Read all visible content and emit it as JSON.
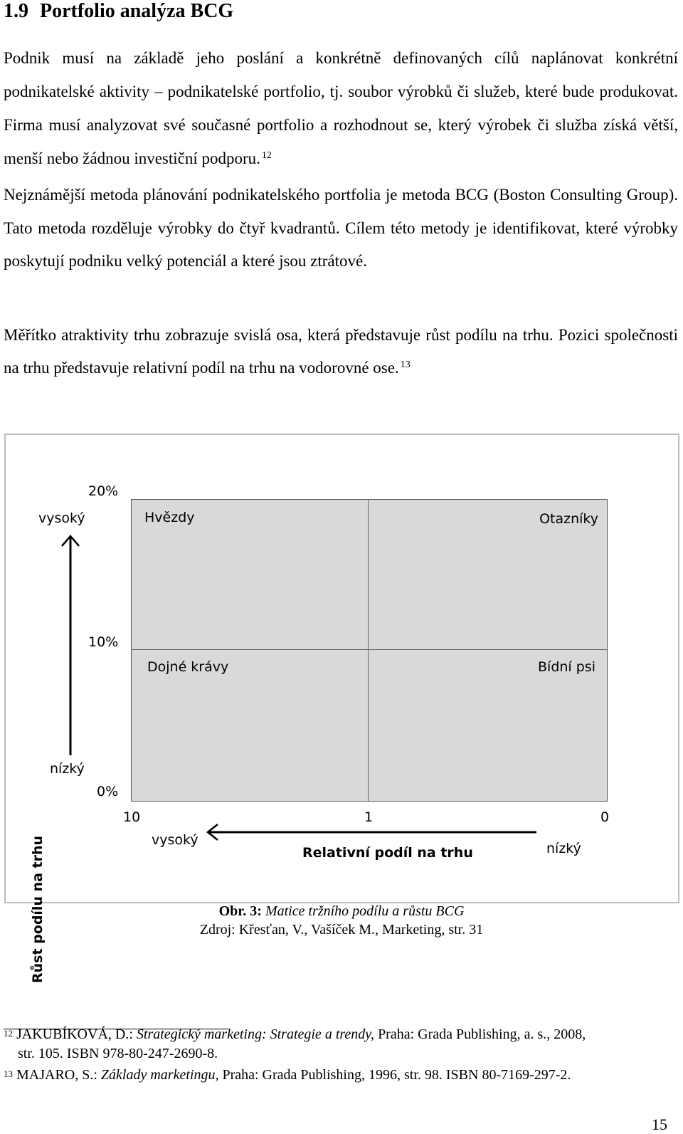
{
  "heading": {
    "number": "1.9",
    "title": "Portfolio analýza BCG"
  },
  "paragraphs": {
    "p1": "Podnik musí na základě jeho poslání a konkrétně definovaných cílů naplánovat konkrétní podnikatelské aktivity – podnikatelské portfolio, tj. soubor výrobků či služeb, které bude produkovat. Firma musí analyzovat své současné portfolio a rozhodnout se, který výrobek či služba získá větší, menší nebo žádnou investiční podporu.",
    "p1_ref": "12",
    "p2": "Nejznámější metoda plánování podnikatelského portfolia je metoda BCG (Boston Consulting Group). Tato metoda rozděluje výrobky do čtyř kvadrantů. Cílem této metody je identifikovat, které výrobky poskytují podniku velký potenciál a které jsou ztrátové.",
    "p3": "Měřítko atraktivity trhu zobrazuje svislá osa, která představuje růst podílu na trhu. Pozici společnosti na trhu představuje relativní podíl na trhu na vodorovné ose.",
    "p3_ref": "13"
  },
  "figure": {
    "y_axis_title": "Růst podílu na trhu",
    "y_high": "vysoký",
    "y_low": "nízký",
    "y_ticks": [
      "20%",
      "10%",
      "0%"
    ],
    "x_ticks": [
      "10",
      "1",
      "0"
    ],
    "x_axis_title": "Relativní podíl na trhu",
    "x_high": "vysoký",
    "x_low": "nízký",
    "quadrants": {
      "top_left": "Hvězdy",
      "top_right": "Otazníky",
      "bottom_left": "Dojné krávy",
      "bottom_right": "Bídní psi"
    }
  },
  "caption": {
    "label": "Obr. 3:",
    "title": "Matice tržního podílu a růstu BCG",
    "source": "Zdroj: Křesťan, V., Vašíček M., Marketing, str. 31"
  },
  "footnotes": {
    "f12_num": "12",
    "f12_author": "JAKUBÍKOVÁ, D.:",
    "f12_title": "Strategický marketing: Strategie a trendy,",
    "f12_rest": "Praha: Grada Publishing, a. s., 2008,",
    "f12_line2": "str. 105. ISBN 978-80-247-2690-8.",
    "f13_num": "13",
    "f13_author": "MAJARO, S.:",
    "f13_title": "Základy marketingu",
    "f13_rest": ", Praha: Grada Publishing, 1996, str. 98. ISBN 80-7169-297-2."
  },
  "page_number": "15"
}
